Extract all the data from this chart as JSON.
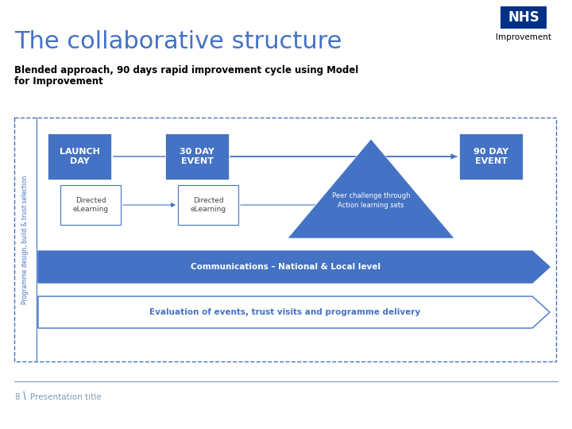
{
  "title": "The collaborative structure",
  "subtitle_line1": "Blended approach, 90 days rapid improvement cycle using Model",
  "subtitle_line2": "for Improvement",
  "title_color": "#4472C4",
  "subtitle_color": "#000000",
  "background_color": "#FFFFFF",
  "blue_box_color": "#4472C4",
  "outline_color": "#4472C4",
  "slide_number": "8",
  "footer_text": "Presentation title",
  "side_label": "Programme design, build & trust selection",
  "nhs_box_color": "#003087",
  "fig_w": 7.2,
  "fig_h": 5.4,
  "dpi": 100
}
